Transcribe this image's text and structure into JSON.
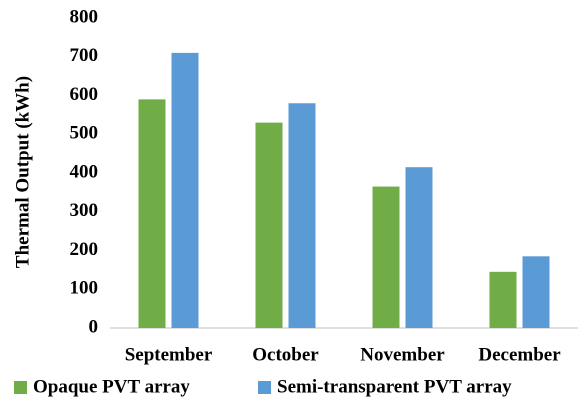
{
  "chart_data": {
    "type": "bar",
    "y_label": "Thermal Output (kWh)",
    "categories": [
      "September",
      "October",
      "November",
      "December"
    ],
    "series": [
      {
        "name": "Opaque PVT array",
        "color": "#70ad47",
        "values": [
          590,
          530,
          365,
          145
        ]
      },
      {
        "name": "Semi-transparent PVT array",
        "color": "#5b9bd5",
        "values": [
          710,
          580,
          415,
          185
        ]
      }
    ],
    "ylim": [
      0,
      800
    ],
    "yticks": [
      0,
      100,
      200,
      300,
      400,
      500,
      600,
      700,
      800
    ],
    "grid": false,
    "legend": "bottom"
  }
}
